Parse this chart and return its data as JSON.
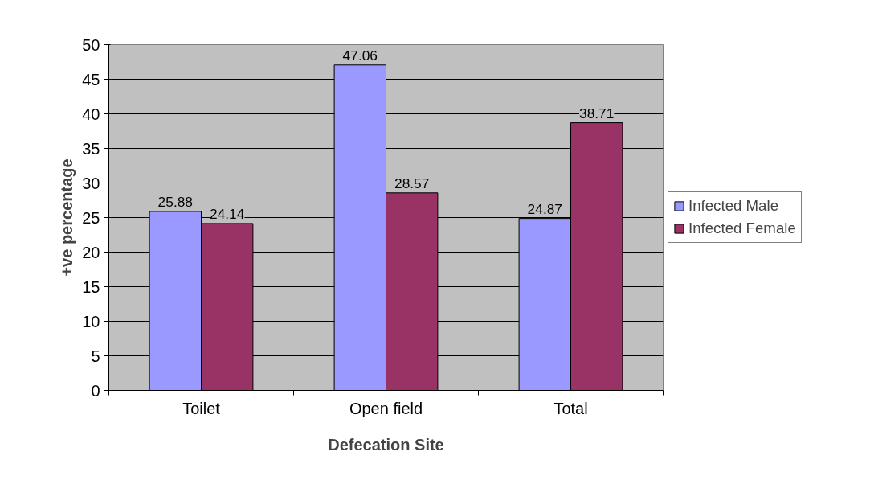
{
  "chart_data": {
    "type": "bar",
    "xlabel": "Defecation Site",
    "ylabel": "+ve percentage",
    "categories": [
      "Toilet",
      "Open field",
      "Total"
    ],
    "series": [
      {
        "name": "Infected Male",
        "color": "#9999ff",
        "values": [
          25.88,
          47.06,
          24.87
        ]
      },
      {
        "name": "Infected Female",
        "color": "#993366",
        "values": [
          24.14,
          28.57,
          38.71
        ]
      }
    ],
    "ylim": [
      0,
      50
    ],
    "yticks": [
      0,
      5,
      10,
      15,
      20,
      25,
      30,
      35,
      40,
      45,
      50
    ],
    "grid": "y",
    "legend": "right",
    "data_labels": true
  }
}
